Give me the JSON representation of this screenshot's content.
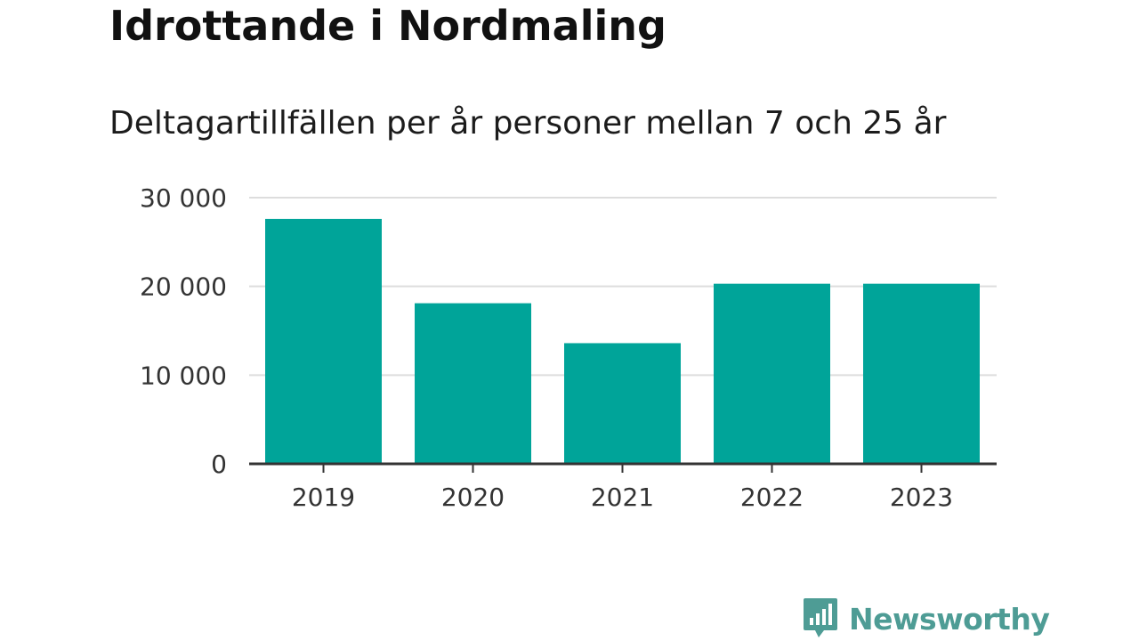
{
  "title": "Idrottande i Nordmaling",
  "subtitle": "Deltagartillfällen per år personer mellan 7 och 25 år",
  "brand": {
    "name": "Newsworthy",
    "logo_icon": "bar-chart-speech-bubble-icon"
  },
  "colors": {
    "bar": "#00a499",
    "grid": "#dddddd",
    "axis": "#333333",
    "brand": "#4e9c95"
  },
  "chart_data": {
    "type": "bar",
    "categories": [
      "2019",
      "2020",
      "2021",
      "2022",
      "2023"
    ],
    "values": [
      27600,
      18100,
      13600,
      20300,
      20300
    ],
    "title": "Idrottande i Nordmaling",
    "subtitle": "Deltagartillfällen per år personer mellan 7 och 25 år",
    "xlabel": "",
    "ylabel": "",
    "ylim": [
      0,
      30000
    ],
    "yticks": [
      0,
      10000,
      20000,
      30000
    ],
    "ytick_labels": [
      "0",
      "10 000",
      "20 000",
      "30 000"
    ],
    "grid": true,
    "legend": "none"
  }
}
